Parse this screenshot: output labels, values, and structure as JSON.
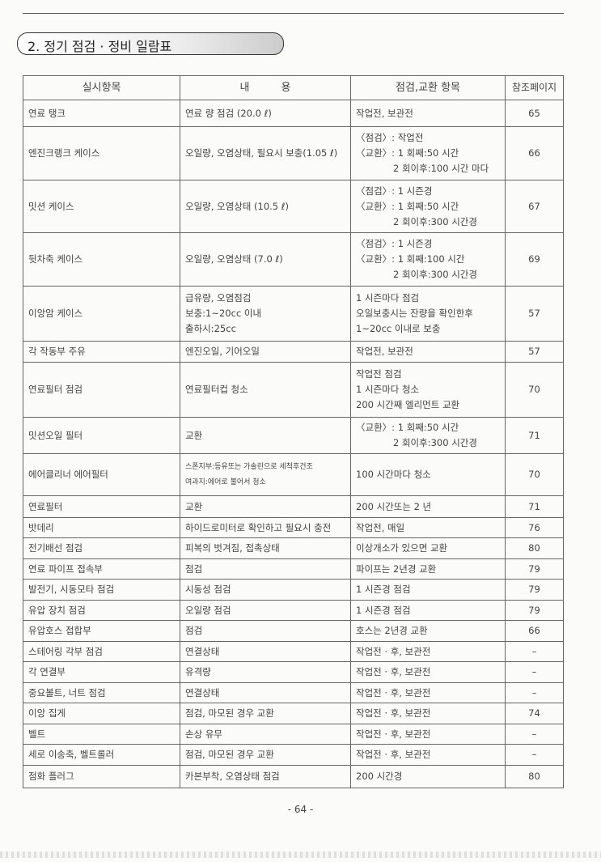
{
  "section_title": "2. 정기 점검 · 정비 일람표",
  "table": {
    "headers": [
      "실시항목",
      "내　　　용",
      "점검,교환 항목",
      "참조페이지"
    ],
    "rows": [
      {
        "item": [
          "연료 탱크"
        ],
        "content": [
          "연료 량 점검 (20.0 ℓ)"
        ],
        "check": [
          "작업전, 보관전"
        ],
        "page": "65",
        "h": 33
      },
      {
        "item": [
          "엔진크랭크 케이스"
        ],
        "content": [
          "오일량, 오염상태, 필요시 보충(1.05 ℓ)"
        ],
        "check": [
          "〈점검〉: 작업전",
          "〈교환〉: 1 회째:50 시간",
          "2 회이후:100 시간 마다"
        ],
        "page": "66",
        "h": 66
      },
      {
        "item": [
          "밋션 케이스"
        ],
        "content": [
          "오일량, 오염상태 (10.5 ℓ)"
        ],
        "check": [
          "〈점검〉: 1 시즌경",
          "〈교환〉: 1 회째:50 시간",
          "2 회이후:300 시간경"
        ],
        "page": "67",
        "h": 65
      },
      {
        "item": [
          "뒷차축 케이스"
        ],
        "content": [
          "오일량, 오염상태 (7.0 ℓ)"
        ],
        "check": [
          "〈점검〉: 1 시즌경",
          "〈교환〉: 1 회째:100 시간",
          "2 회이후:300 시간경"
        ],
        "page": "69",
        "h": 66
      },
      {
        "item": [
          "이앙암 케이스"
        ],
        "content": [
          "급유량, 오염점검",
          "보충:1~20cc 이내",
          "출하시:25cc"
        ],
        "check": [
          "1 시즌마다 점검",
          "오일보충시는 잔량을 확인한후",
          "1~20cc 이내로 보충"
        ],
        "page": "57",
        "h": 68
      },
      {
        "item": [
          "각 작동부 주유"
        ],
        "content": [
          "엔진오일, 기어오일"
        ],
        "check": [
          "작업전, 보관전"
        ],
        "page": "57",
        "h": 26
      },
      {
        "item": [
          "연료필터 점검"
        ],
        "content": [
          "연료필터컵 청소"
        ],
        "check": [
          "작업전 점검",
          "1 시즌마다 청소",
          "200 시간째 엘리먼트 교환"
        ],
        "page": "70",
        "h": 68
      },
      {
        "item": [
          "밋션오일 필터"
        ],
        "content": [
          "교환"
        ],
        "check": [
          "〈교환〉: 1 회째:50 시간",
          "2 회이후:300 시간경"
        ],
        "page": "71",
        "h": 45
      },
      {
        "item": [
          "에어클리너 에어필터"
        ],
        "content": [
          "스폰지부:등유또는 가솔린으로 세척후건조",
          "여과지:에어로 불어서 청소"
        ],
        "check": [
          "100 시간마다 청소"
        ],
        "page": "70",
        "h": 52,
        "small": true
      },
      {
        "item": [
          "연료필터"
        ],
        "content": [
          "교환"
        ],
        "check": [
          "200 시간또는 2 년"
        ],
        "page": "71",
        "h": 27
      },
      {
        "item": [
          "밧데리"
        ],
        "content": [
          "하이드로미터로 확인하고 필요시 충전"
        ],
        "check": [
          "작업전, 매일"
        ],
        "page": "76",
        "h": 25
      },
      {
        "item": [
          "전기배선 점검"
        ],
        "content": [
          "피복의 벗겨짐, 접촉상태"
        ],
        "check": [
          "이상개소가 있으면 교환"
        ],
        "page": "80",
        "h": 26
      },
      {
        "item": [
          "연료 파이프 접속부"
        ],
        "content": [
          "점검"
        ],
        "check": [
          "파이프는 2년경 교환"
        ],
        "page": "79",
        "h": 25
      },
      {
        "item": [
          "발전기, 시동모타 점검"
        ],
        "content": [
          "시동성 점검"
        ],
        "check": [
          "1 시즌경 점검"
        ],
        "page": "79",
        "h": 26
      },
      {
        "item": [
          "유압 장치 점검"
        ],
        "content": [
          "오일량 점검"
        ],
        "check": [
          "1 시즌경 점검"
        ],
        "page": "79",
        "h": 25
      },
      {
        "item": [
          "유압호스 접합부"
        ],
        "content": [
          "점검"
        ],
        "check": [
          "호스는 2년경 교환"
        ],
        "page": "66",
        "h": 26
      },
      {
        "item": [
          "스테어링 각부 점검"
        ],
        "content": [
          "연결상태"
        ],
        "check": [
          "작업전 · 후, 보관전"
        ],
        "page": "–",
        "h": 25
      },
      {
        "item": [
          "각 연결부"
        ],
        "content": [
          "유격량"
        ],
        "check": [
          "작업전 · 후, 보관전"
        ],
        "page": "–",
        "h": 26
      },
      {
        "item": [
          "중요볼트, 너트 점검"
        ],
        "content": [
          "연결상태"
        ],
        "check": [
          "작업전 · 후, 보관전"
        ],
        "page": "–",
        "h": 25
      },
      {
        "item": [
          "이앙 집게"
        ],
        "content": [
          "점검, 마모된 경우 교환"
        ],
        "check": [
          "작업전 · 후, 보관전"
        ],
        "page": "74",
        "h": 26
      },
      {
        "item": [
          "벨트"
        ],
        "content": [
          "손상 유무"
        ],
        "check": [
          "작업전 · 후, 보관전"
        ],
        "page": "–",
        "h": 25
      },
      {
        "item": [
          "세로 이송축, 벨트롤러"
        ],
        "content": [
          "점검, 마모된 경우 교환"
        ],
        "check": [
          "작업전 · 후, 보관전"
        ],
        "page": "–",
        "h": 26
      },
      {
        "item": [
          "점화 플러그"
        ],
        "content": [
          "카본부착, 오염상태 점검"
        ],
        "check": [
          "200 시간경"
        ],
        "page": "80",
        "h": 28
      }
    ]
  },
  "page_number": "- 64 -"
}
